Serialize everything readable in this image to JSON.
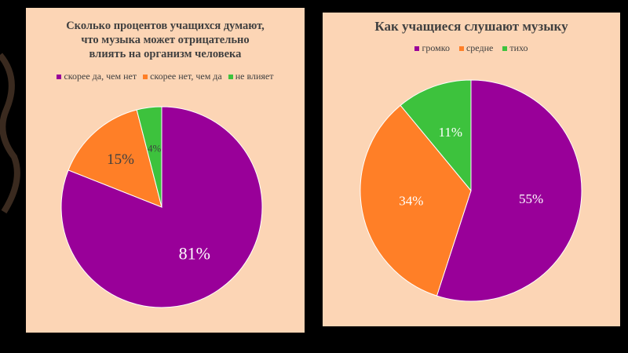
{
  "chart_data": [
    {
      "type": "pie",
      "title": "Сколько процентов учащихся думают, что музыка может отрицательно влиять на организм человека",
      "title_lines": [
        "Сколько процентов учащихся думают,",
        "что музыка может отрицательно",
        "влиять на организм человека"
      ],
      "categories": [
        "скорее да, чем нет",
        "скорее нет, чем да",
        "не влияет"
      ],
      "values": [
        81,
        15,
        4
      ],
      "labels": [
        "81%",
        "15%",
        "4%"
      ],
      "colors": [
        "#990099",
        "#ff7f27",
        "#3dc23d"
      ],
      "legend": "top"
    },
    {
      "type": "pie",
      "title": "Как учащиеся слушают музыку",
      "categories": [
        "громко",
        "средне",
        "тихо"
      ],
      "values": [
        55,
        34,
        11
      ],
      "labels": [
        "55%",
        "34%",
        "11%"
      ],
      "colors": [
        "#990099",
        "#ff7f27",
        "#3dc23d"
      ],
      "legend": "top"
    }
  ]
}
